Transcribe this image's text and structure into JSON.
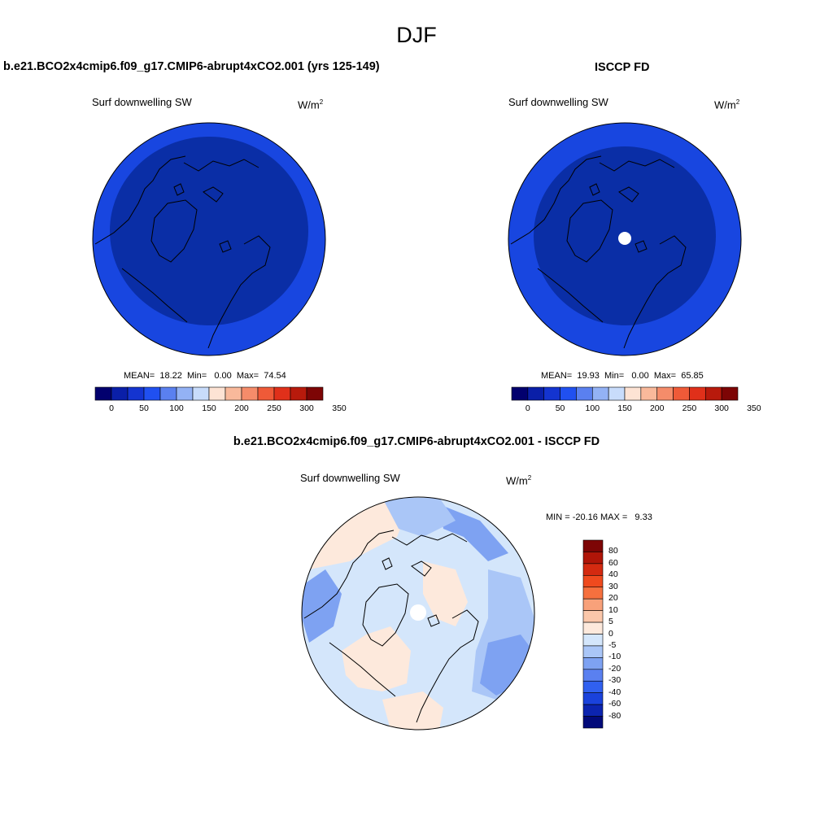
{
  "page_title": "DJF",
  "units_main": "W/m",
  "units_sup": "2",
  "field_label": "Surf downwelling SW",
  "colors": {
    "deep_blue": "#0a2ea6",
    "mid_blue": "#1846e0",
    "land_outline": "#000000"
  },
  "panels": {
    "left": {
      "title": "b.e21.BCO2x4cmip6.f09_g17.CMIP6-abrupt4xCO2.001 (yrs 125-149)",
      "stats": {
        "mean_label": "MEAN=",
        "mean": "18.22",
        "min_label": "Min=",
        "min": "0.00",
        "max_label": "Max=",
        "max": "74.54"
      }
    },
    "right": {
      "title": "ISCCP FD",
      "stats": {
        "mean_label": "MEAN=",
        "mean": "19.93",
        "min_label": "Min=",
        "min": "0.00",
        "max_label": "Max=",
        "max": "65.85"
      }
    },
    "diff": {
      "title": "b.e21.BCO2x4cmip6.f09_g17.CMIP6-abrupt4xCO2.001 - ISCCP FD",
      "minmax": "MIN = -20.16 MAX =   9.33"
    }
  },
  "colorbar_main": {
    "colors": [
      "#02006e",
      "#0a1fa8",
      "#1434d0",
      "#2050f0",
      "#5a80f0",
      "#93b2f5",
      "#c8dcfb",
      "#fde3d4",
      "#f9b99b",
      "#f58c6a",
      "#ef5a38",
      "#e0301a",
      "#b81a0c",
      "#7d0505"
    ],
    "labels": [
      "0",
      "50",
      "100",
      "150",
      "200",
      "250",
      "300",
      "350"
    ]
  },
  "colorbar_diff": {
    "colors": [
      "#7d0505",
      "#b01508",
      "#d42a10",
      "#ef4a1e",
      "#f6703e",
      "#f8a17a",
      "#fbc7aa",
      "#fde9dc",
      "#d4e6fb",
      "#aac6f7",
      "#7ea2f2",
      "#5a80f0",
      "#3060f0",
      "#1a42dc",
      "#0c24b0",
      "#020a7a"
    ],
    "labels": [
      "80",
      "60",
      "40",
      "30",
      "20",
      "10",
      "5",
      "0",
      "-5",
      "-10",
      "-20",
      "-30",
      "-40",
      "-60",
      "-80"
    ]
  }
}
